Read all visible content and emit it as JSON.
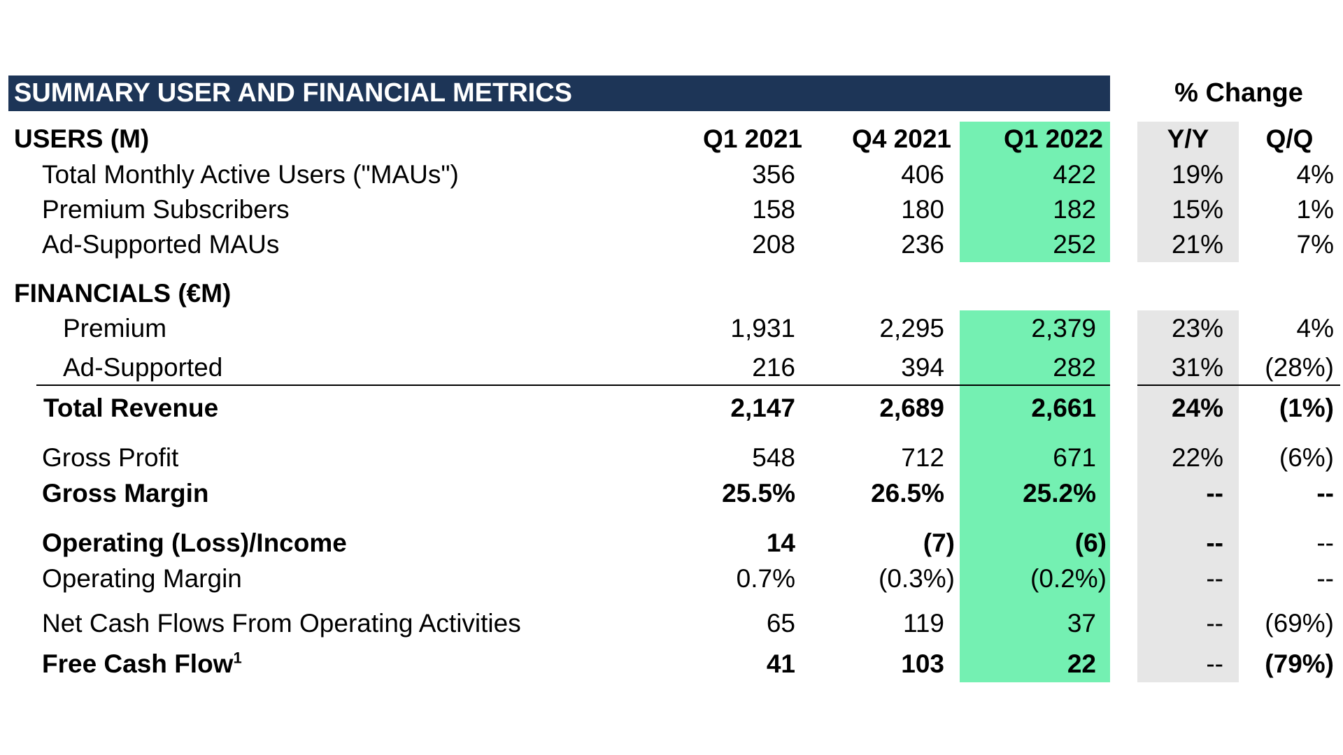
{
  "title": "SUMMARY USER AND FINANCIAL METRICS",
  "pct_change_label": "% Change",
  "users": {
    "section_label": "USERS (M)",
    "columns": [
      "Q1 2021",
      "Q4 2021",
      "Q1 2022",
      "Y/Y",
      "Q/Q"
    ],
    "rows": [
      {
        "label": "Total Monthly Active Users (\"MAUs\")",
        "q1_2021": "356",
        "q4_2021": "406",
        "q1_2022": "422",
        "yy": "19%",
        "qq": "4%"
      },
      {
        "label": "Premium Subscribers",
        "q1_2021": "158",
        "q4_2021": "180",
        "q1_2022": "182",
        "yy": "15%",
        "qq": "1%"
      },
      {
        "label": "Ad-Supported MAUs",
        "q1_2021": "208",
        "q4_2021": "236",
        "q1_2022": "252",
        "yy": "21%",
        "qq": "7%"
      }
    ]
  },
  "financials": {
    "section_label": "FINANCIALS (€M)",
    "premium": {
      "label": "Premium",
      "q1_2021": "1,931",
      "q4_2021": "2,295",
      "q1_2022": "2,379",
      "yy": "23%",
      "qq": "4%"
    },
    "ad_supported": {
      "label": "Ad-Supported",
      "q1_2021": "216",
      "q4_2021": "394",
      "q1_2022": "282",
      "yy": "31%",
      "qq": "(28%)"
    },
    "total_revenue": {
      "label": "Total Revenue",
      "q1_2021": "2,147",
      "q4_2021": "2,689",
      "q1_2022": "2,661",
      "yy": "24%",
      "qq": "(1%)"
    },
    "gross_profit": {
      "label": "Gross Profit",
      "q1_2021": "548",
      "q4_2021": "712",
      "q1_2022": "671",
      "yy": "22%",
      "qq": "(6%)"
    },
    "gross_margin": {
      "label": "Gross Margin",
      "q1_2021": "25.5%",
      "q4_2021": "26.5%",
      "q1_2022": "25.2%",
      "yy": "--",
      "qq": "--"
    },
    "operating_income": {
      "label": "Operating (Loss)/Income",
      "q1_2021": "14",
      "q4_2021": "(7)",
      "q1_2022": "(6)",
      "yy": "--",
      "qq": "--"
    },
    "operating_margin": {
      "label": "Operating Margin",
      "q1_2021": "0.7%",
      "q4_2021": "(0.3%)",
      "q1_2022": "(0.2%)",
      "yy": "--",
      "qq": "--"
    },
    "net_cash_flows": {
      "label": "Net Cash Flows From Operating Activities",
      "q1_2021": "65",
      "q4_2021": "119",
      "q1_2022": "37",
      "yy": "--",
      "qq": "(69%)"
    },
    "free_cash_flow": {
      "label": "Free Cash Flow",
      "footnote": "1",
      "q1_2021": "41",
      "q4_2021": "103",
      "q1_2022": "22",
      "yy": "--",
      "qq": "(79%)"
    }
  },
  "colors": {
    "title_bar": "#1d3557",
    "highlight_current_quarter": "#74f0b2",
    "highlight_change": "#e6e6e6"
  }
}
